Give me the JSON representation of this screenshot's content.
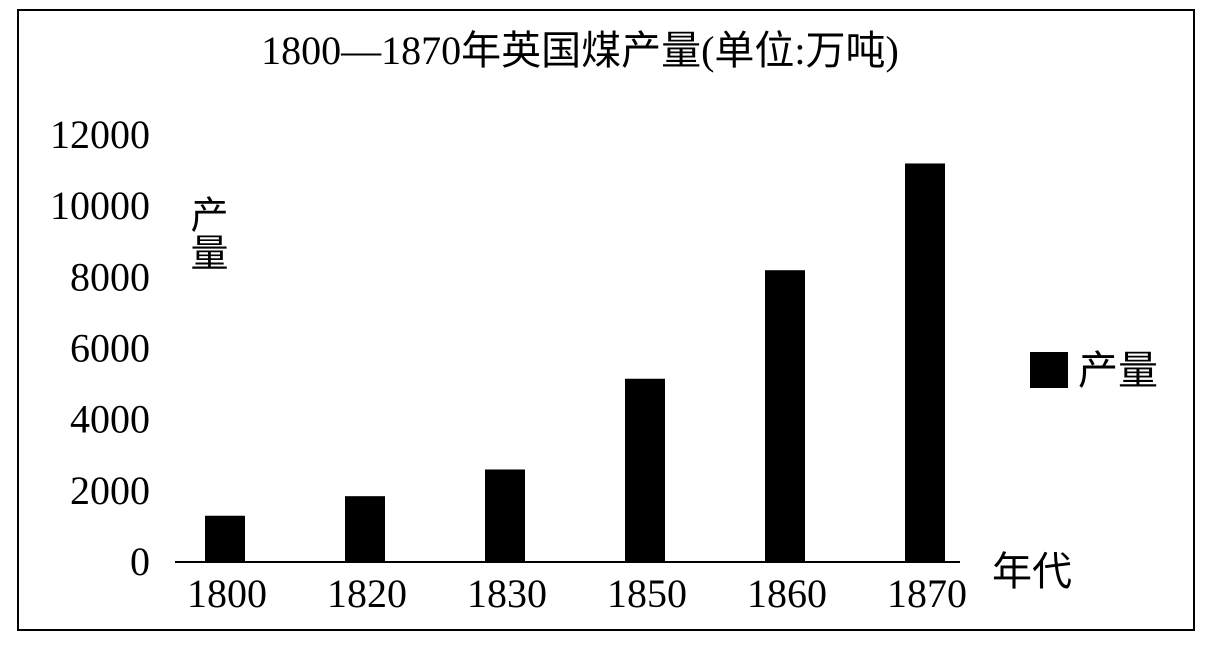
{
  "chart_data": {
    "type": "bar",
    "title": "1800—1870年英国煤产量(单位:万吨)",
    "x_label": "年代",
    "y_label": "产量",
    "categories": [
      "1800",
      "1820",
      "1830",
      "1850",
      "1860",
      "1870"
    ],
    "series": [
      {
        "name": "产量",
        "color": "#000000",
        "values": [
          1300,
          1850,
          2600,
          5150,
          8200,
          11200
        ]
      }
    ],
    "ylim": [
      0,
      12000
    ],
    "yticks": [
      0,
      2000,
      4000,
      6000,
      8000,
      10000,
      12000
    ],
    "grid": false,
    "legend": "right"
  }
}
